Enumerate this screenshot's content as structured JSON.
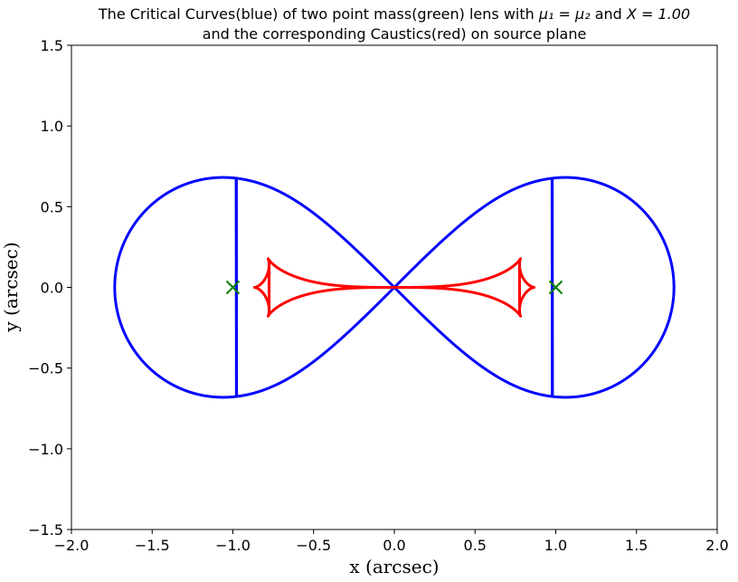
{
  "chart_data": {
    "type": "line",
    "title_line1_prefix": "The Critical Curves(blue) of two point mass(green) lens with ",
    "title_line1_math": "μ₁ = μ₂",
    "title_line1_mid": " and ",
    "title_line1_math2": "X = 1.00",
    "title_line2": "and the corresponding Caustics(red) on source plane",
    "xlabel": "x (arcsec)",
    "ylabel": "y (arcsec)",
    "xlim": [
      -2.0,
      2.0
    ],
    "ylim": [
      -1.5,
      1.5
    ],
    "xticks": [
      -2.0,
      -1.5,
      -1.0,
      -0.5,
      0.0,
      0.5,
      1.0,
      1.5,
      2.0
    ],
    "xtick_labels": [
      "−2.0",
      "−1.5",
      "−1.0",
      "−0.5",
      "0.0",
      "0.5",
      "1.0",
      "1.5",
      "2.0"
    ],
    "yticks": [
      -1.5,
      -1.0,
      -0.5,
      0.0,
      0.5,
      1.0,
      1.5
    ],
    "ytick_labels": [
      "−1.5",
      "−1.0",
      "−0.5",
      "0.0",
      "0.5",
      "1.0",
      "1.5"
    ],
    "grid": false,
    "lens_mass_ratio": 1.0,
    "lens_half_separation": 1.0,
    "series": [
      {
        "kind": "critical_curve",
        "color": "#0000ff"
      },
      {
        "kind": "caustic",
        "color": "#ff0000"
      }
    ],
    "lens_positions": {
      "marker": "x",
      "color": "#008000",
      "points": [
        [
          -1.0,
          0.0
        ],
        [
          1.0,
          0.0
        ]
      ]
    }
  }
}
